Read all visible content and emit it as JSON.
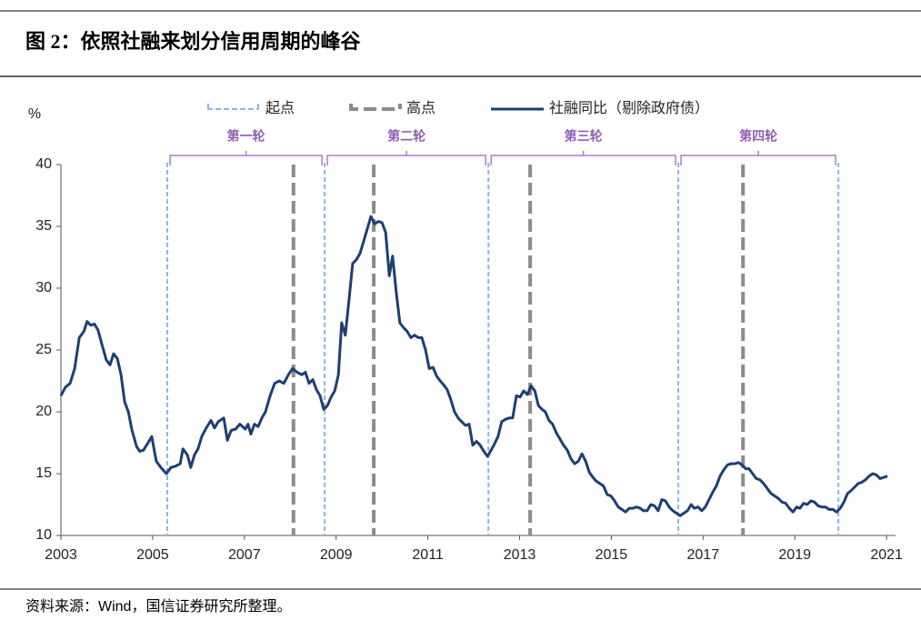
{
  "title": "图 2：依照社融来划分信用周期的峰谷",
  "source": "资料来源：Wind，国信证券研究所整理。",
  "chart_data": {
    "type": "line",
    "ylabel": "%",
    "xlim": [
      2003,
      2021.2
    ],
    "xticks": [
      2003,
      2005,
      2007,
      2009,
      2011,
      2013,
      2015,
      2017,
      2019,
      2021
    ],
    "ylim": [
      10,
      40
    ],
    "yticks": [
      10,
      15,
      20,
      25,
      30,
      35,
      40
    ],
    "rounds": [
      "第一轮",
      "第二轮",
      "第三轮",
      "第四轮"
    ],
    "starts": {
      "name": "起点",
      "color": "#8fb4e3",
      "x": [
        2005.32,
        2008.75,
        2012.32,
        2016.46,
        2019.95
      ]
    },
    "peaks": {
      "name": "高点",
      "color": "#8c8c8c",
      "x": [
        2008.07,
        2009.82,
        2013.23,
        2017.87
      ]
    },
    "series": [
      {
        "name": "社融同比（剔除政府债）",
        "color": "#1f3f73",
        "x": [
          2003.0,
          2003.1,
          2003.2,
          2003.3,
          2003.4,
          2003.5,
          2003.57,
          2003.65,
          2003.73,
          2003.81,
          2003.89,
          2003.99,
          2004.07,
          2004.15,
          2004.23,
          2004.31,
          2004.39,
          2004.47,
          2004.55,
          2004.65,
          2004.72,
          2004.8,
          2004.9,
          2004.98,
          2005.08,
          2005.18,
          2005.3,
          2005.4,
          2005.5,
          2005.6,
          2005.66,
          2005.76,
          2005.83,
          2005.91,
          2005.99,
          2006.07,
          2006.17,
          2006.27,
          2006.35,
          2006.43,
          2006.55,
          2006.63,
          2006.71,
          2006.81,
          2006.9,
          2007.02,
          2007.08,
          2007.14,
          2007.22,
          2007.3,
          2007.38,
          2007.46,
          2007.56,
          2007.66,
          2007.76,
          2007.86,
          2007.96,
          2008.05,
          2008.15,
          2008.25,
          2008.33,
          2008.41,
          2008.49,
          2008.57,
          2008.65,
          2008.73,
          2008.81,
          2008.89,
          2008.97,
          2009.05,
          2009.12,
          2009.2,
          2009.28,
          2009.36,
          2009.44,
          2009.52,
          2009.6,
          2009.68,
          2009.76,
          2009.84,
          2009.92,
          2010.0,
          2010.08,
          2010.16,
          2010.23,
          2010.31,
          2010.39,
          2010.47,
          2010.55,
          2010.63,
          2010.71,
          2010.79,
          2010.87,
          2010.95,
          2011.03,
          2011.11,
          2011.19,
          2011.27,
          2011.34,
          2011.42,
          2011.5,
          2011.58,
          2011.66,
          2011.74,
          2011.82,
          2011.9,
          2011.98,
          2012.06,
          2012.14,
          2012.22,
          2012.3,
          2012.38,
          2012.45,
          2012.53,
          2012.61,
          2012.69,
          2012.77,
          2012.85,
          2012.93,
          2013.01,
          2013.09,
          2013.17,
          2013.25,
          2013.33,
          2013.41,
          2013.49,
          2013.56,
          2013.64,
          2013.72,
          2013.8,
          2013.88,
          2013.96,
          2014.04,
          2014.12,
          2014.2,
          2014.28,
          2014.36,
          2014.44,
          2014.52,
          2014.6,
          2014.67,
          2014.75,
          2014.83,
          2014.91,
          2014.99,
          2015.07,
          2015.15,
          2015.23,
          2015.31,
          2015.39,
          2015.47,
          2015.55,
          2015.63,
          2015.7,
          2015.78,
          2015.86,
          2015.94,
          2016.02,
          2016.1,
          2016.18,
          2016.26,
          2016.34,
          2016.42,
          2016.5,
          2016.58,
          2016.66,
          2016.74,
          2016.81,
          2016.89,
          2016.97,
          2017.05,
          2017.13,
          2017.21,
          2017.29,
          2017.37,
          2017.45,
          2017.53,
          2017.61,
          2017.69,
          2017.77,
          2017.85,
          2017.93,
          2018.0,
          2018.08,
          2018.16,
          2018.24,
          2018.32,
          2018.4,
          2018.48,
          2018.56,
          2018.64,
          2018.72,
          2018.8,
          2018.88,
          2018.96,
          2019.04,
          2019.11,
          2019.19,
          2019.27,
          2019.35,
          2019.43,
          2019.51,
          2019.59,
          2019.67,
          2019.75,
          2019.83,
          2019.91,
          2019.99,
          2020.07,
          2020.15,
          2020.22,
          2020.3,
          2020.38,
          2020.46,
          2020.54,
          2020.62,
          2020.7,
          2020.78,
          2020.86,
          2020.94,
          2021.02
        ],
        "values": [
          21.3,
          22.0,
          22.3,
          23.5,
          26.0,
          26.5,
          27.3,
          27.0,
          27.1,
          26.6,
          25.5,
          24.2,
          23.8,
          24.7,
          24.3,
          23.0,
          20.8,
          20.0,
          18.5,
          17.2,
          16.8,
          16.9,
          17.5,
          18.0,
          16.0,
          15.5,
          15.0,
          15.5,
          15.6,
          15.8,
          17.0,
          16.5,
          15.5,
          16.5,
          17.0,
          18.0,
          18.7,
          19.3,
          18.7,
          19.2,
          19.5,
          17.7,
          18.5,
          18.6,
          19.0,
          18.6,
          19.0,
          18.2,
          19.0,
          18.8,
          19.5,
          20.0,
          21.3,
          22.3,
          22.5,
          22.3,
          23.0,
          23.5,
          23.2,
          23.0,
          23.2,
          22.3,
          22.6,
          21.8,
          21.3,
          20.2,
          20.5,
          21.2,
          21.7,
          23.0,
          27.2,
          26.2,
          29.0,
          32.0,
          32.3,
          32.8,
          33.8,
          34.8,
          35.8,
          35.2,
          35.4,
          35.3,
          34.5,
          31.0,
          32.6,
          29.7,
          27.2,
          26.8,
          26.5,
          26.0,
          26.2,
          26.0,
          26.0,
          25.0,
          23.5,
          23.6,
          22.9,
          22.5,
          22.2,
          21.8,
          21.0,
          20.0,
          19.5,
          19.2,
          18.9,
          19.0,
          17.3,
          17.6,
          17.3,
          16.8,
          16.4,
          16.9,
          17.4,
          18.0,
          19.2,
          19.4,
          19.5,
          19.5,
          21.3,
          21.2,
          21.7,
          21.4,
          22.1,
          21.7,
          20.5,
          20.2,
          20.0,
          19.3,
          19.0,
          18.3,
          17.8,
          17.3,
          16.9,
          16.2,
          15.8,
          16.0,
          16.6,
          16.0,
          15.1,
          14.7,
          14.4,
          14.2,
          14.0,
          13.3,
          13.2,
          12.8,
          12.3,
          12.1,
          11.9,
          12.2,
          12.2,
          12.3,
          12.2,
          12.0,
          12.0,
          12.5,
          12.4,
          12.0,
          12.9,
          12.8,
          12.3,
          12.0,
          11.8,
          11.6,
          11.8,
          12.0,
          12.5,
          12.2,
          12.3,
          12.0,
          12.3,
          12.9,
          13.5,
          14.0,
          14.8,
          15.3,
          15.7,
          15.8,
          15.8,
          15.9,
          15.7,
          15.4,
          15.4,
          15.0,
          14.6,
          14.5,
          14.2,
          13.8,
          13.4,
          13.2,
          13.0,
          12.7,
          12.6,
          12.2,
          11.9,
          12.3,
          12.2,
          12.6,
          12.5,
          12.8,
          12.7,
          12.4,
          12.3,
          12.3,
          12.1,
          12.1,
          11.9,
          12.2,
          12.7,
          13.4,
          13.6,
          13.9,
          14.2,
          14.3,
          14.5,
          14.8,
          15.0,
          14.9,
          14.6,
          14.7,
          14.8
        ]
      }
    ]
  }
}
